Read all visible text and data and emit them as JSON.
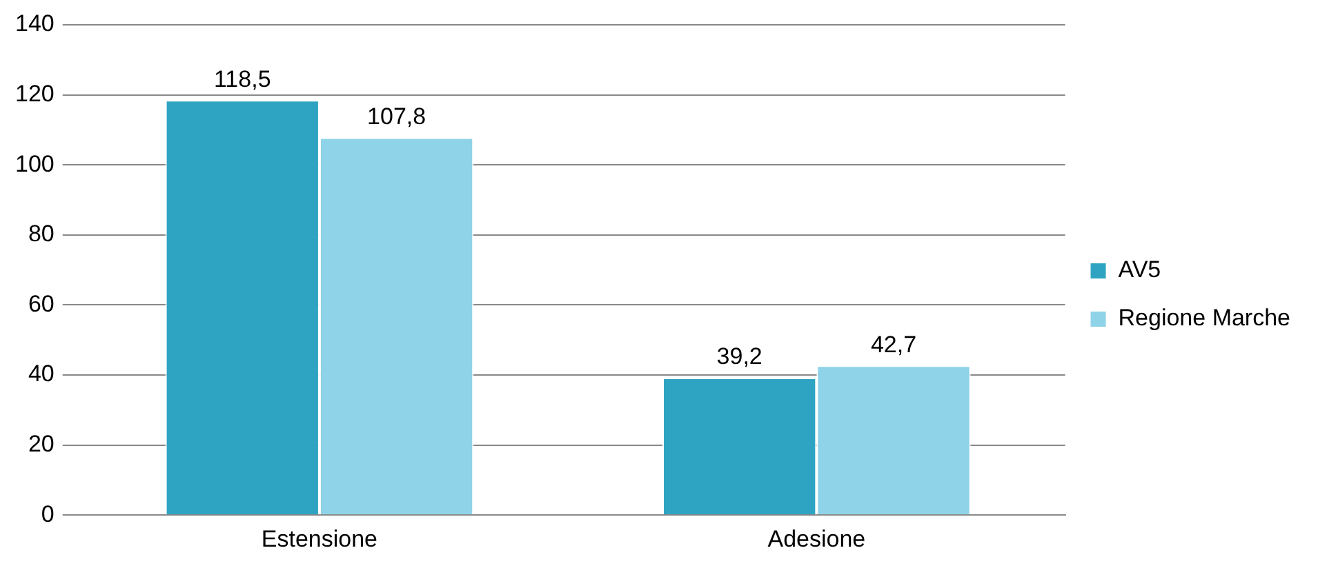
{
  "chart_data": {
    "type": "bar",
    "categories": [
      "Estensione",
      "Adesione"
    ],
    "series": [
      {
        "name": "AV5",
        "color": "#2fa4c2",
        "values": [
          118.5,
          39.2
        ],
        "value_labels": [
          "118,5",
          "39,2"
        ]
      },
      {
        "name": "Regione Marche",
        "color": "#8fd3e8",
        "values": [
          107.8,
          42.7
        ],
        "value_labels": [
          "107,8",
          "42,7"
        ]
      }
    ],
    "ylim": [
      0,
      140
    ],
    "yticks": [
      0,
      20,
      40,
      60,
      80,
      100,
      120,
      140
    ],
    "grid": "y",
    "legend": "right"
  }
}
